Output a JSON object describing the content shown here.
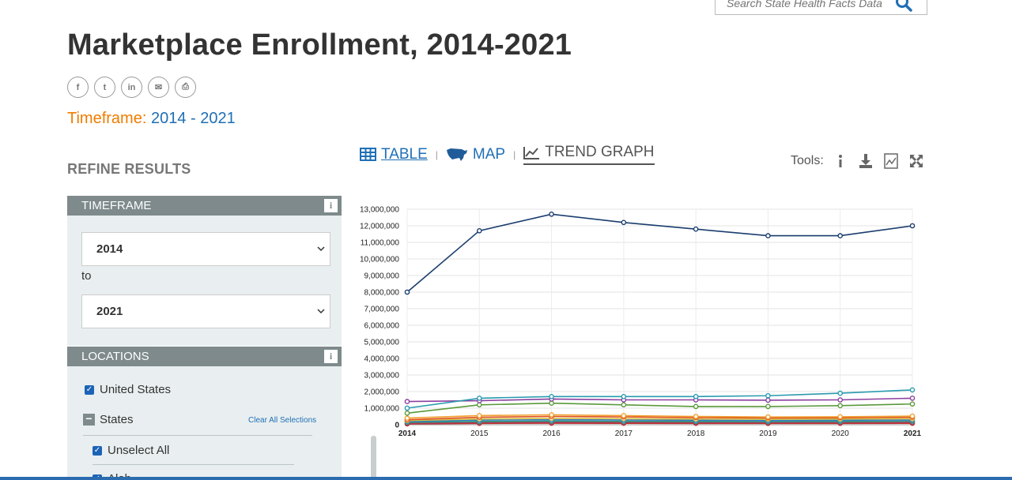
{
  "search": {
    "placeholder": "Search State Health Facts Data"
  },
  "page": {
    "title": "Marketplace Enrollment, 2014-2021"
  },
  "share": [
    "f",
    "t",
    "in",
    "✉",
    "⎙"
  ],
  "timeframe": {
    "label": "Timeframe:",
    "value": "2014 - 2021"
  },
  "refine": {
    "title": "REFINE RESULTS"
  },
  "timeframe_panel": {
    "title": "TIMEFRAME",
    "info": "i",
    "from": "2014",
    "to_label": "to",
    "to": "2021"
  },
  "locations_panel": {
    "title": "LOCATIONS",
    "info": "i",
    "united_states": "United States",
    "states": "States",
    "clear_all": "Clear All Selections",
    "unselect_all": "Unselect All",
    "partial": "Alab"
  },
  "tabs": {
    "table": "TABLE",
    "map": "MAP",
    "trend": "TREND GRAPH"
  },
  "tools": {
    "label": "Tools:"
  },
  "colors": {
    "accent_orange": "#f07c00",
    "link_blue": "#1f6fb5",
    "panel_gray": "#7e8a8b",
    "panel_bg": "#e9eff0"
  },
  "chart_data": {
    "type": "line",
    "x": [
      "2014",
      "2015",
      "2016",
      "2017",
      "2018",
      "2019",
      "2020",
      "2021"
    ],
    "ytick_labels": [
      "0",
      "1,000,000",
      "2,000,000",
      "3,000,000",
      "4,000,000",
      "5,000,000",
      "6,000,000",
      "7,000,000",
      "8,000,000",
      "9,000,000",
      "10,000,000",
      "11,000,000",
      "12,000,000",
      "13,000,000"
    ],
    "ylim": [
      0,
      13000000
    ],
    "grid": true,
    "series": [
      {
        "color": "#1a3d6e",
        "values": [
          8000000,
          11700000,
          12700000,
          12200000,
          11800000,
          11400000,
          11400000,
          12000000
        ]
      },
      {
        "color": "#2a9ab0",
        "values": [
          1000000,
          1600000,
          1700000,
          1700000,
          1700000,
          1750000,
          1900000,
          2100000
        ]
      },
      {
        "color": "#8b3fa0",
        "values": [
          1400000,
          1450000,
          1550000,
          1500000,
          1500000,
          1480000,
          1500000,
          1600000
        ]
      },
      {
        "color": "#5a9a3b",
        "values": [
          700000,
          1200000,
          1300000,
          1200000,
          1100000,
          1100000,
          1150000,
          1250000
        ]
      },
      {
        "color": "#f0a030",
        "values": [
          400000,
          550000,
          600000,
          550000,
          500000,
          470000,
          480000,
          520000
        ]
      },
      {
        "color": "#e05020",
        "values": [
          300000,
          450000,
          500000,
          470000,
          430000,
          410000,
          420000,
          450000
        ]
      },
      {
        "color": "#d4c040",
        "values": [
          250000,
          350000,
          380000,
          360000,
          340000,
          330000,
          340000,
          360000
        ]
      },
      {
        "color": "#3b78c4",
        "values": [
          200000,
          280000,
          300000,
          290000,
          270000,
          260000,
          270000,
          290000
        ]
      },
      {
        "color": "#2aa080",
        "values": [
          150000,
          200000,
          220000,
          210000,
          200000,
          195000,
          200000,
          220000
        ]
      },
      {
        "color": "#a04060",
        "values": [
          100000,
          140000,
          160000,
          150000,
          140000,
          135000,
          140000,
          150000
        ]
      },
      {
        "color": "#c03030",
        "values": [
          50000,
          80000,
          90000,
          85000,
          80000,
          78000,
          80000,
          85000
        ]
      }
    ]
  }
}
